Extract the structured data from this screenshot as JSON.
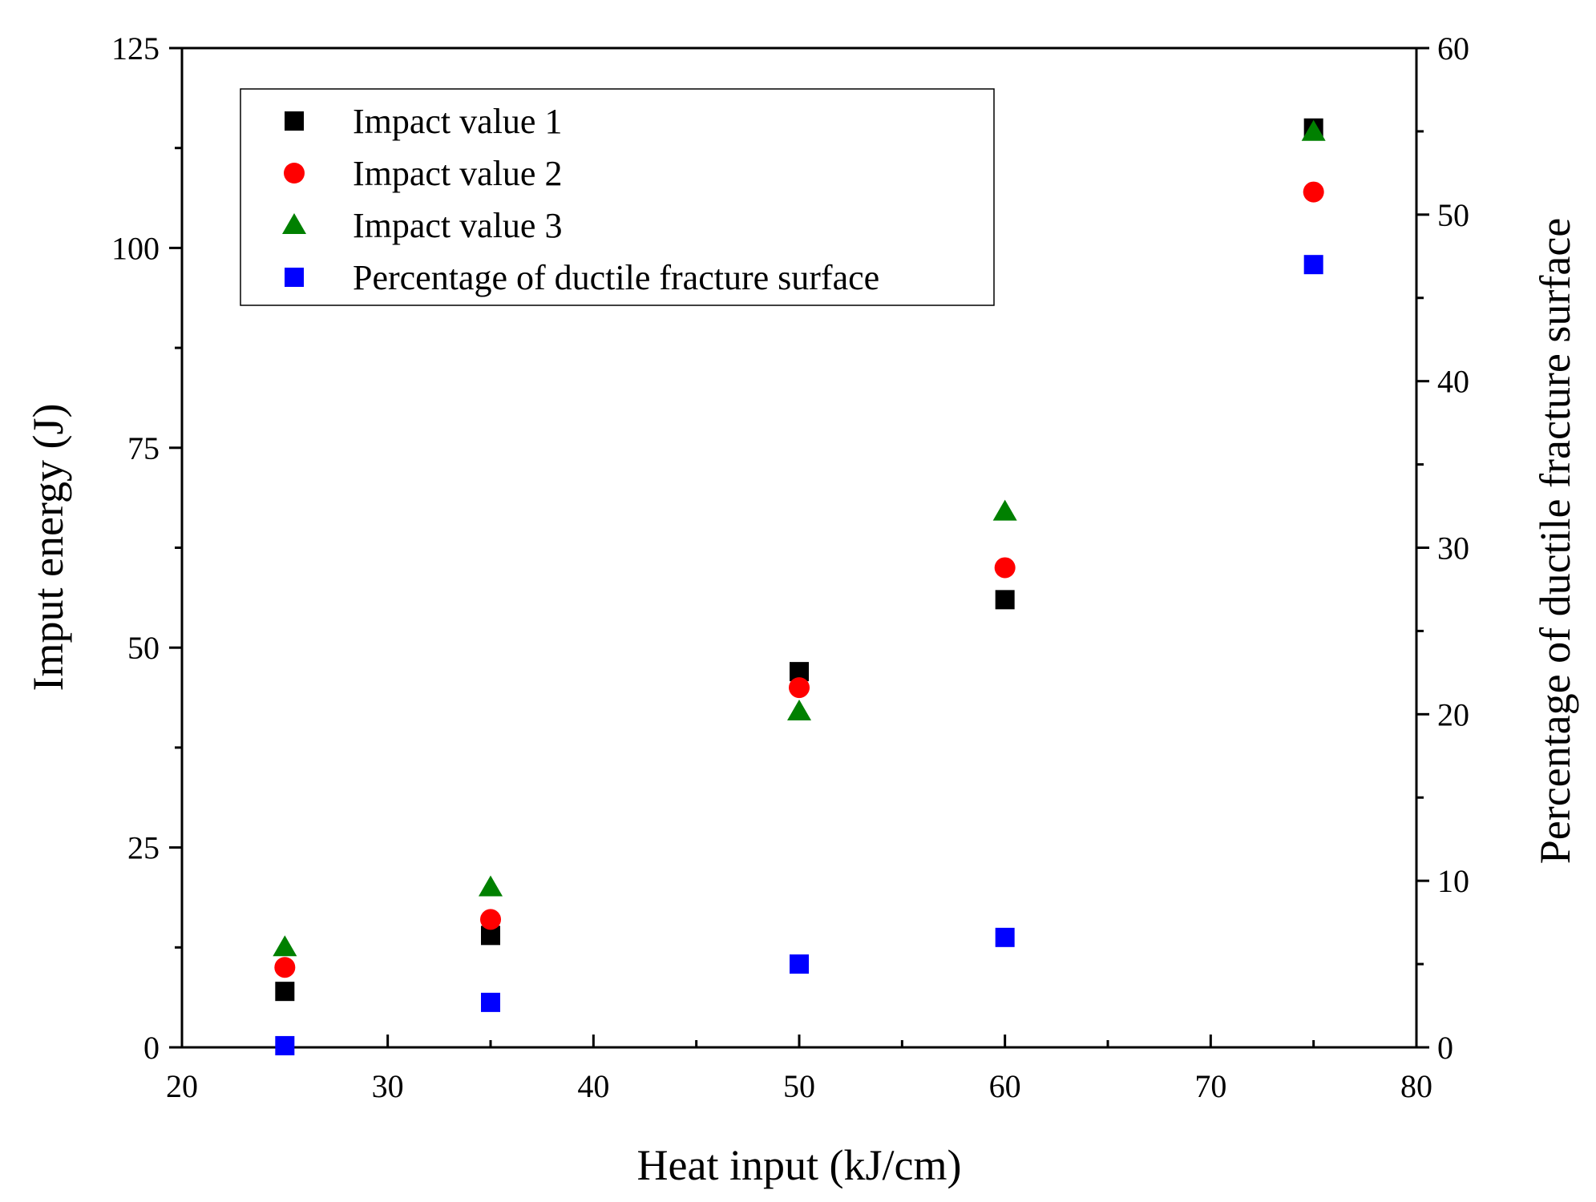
{
  "chart_data": {
    "type": "scatter",
    "xlabel": "Heat input (kJ/cm)",
    "ylabel": "Imput energy (J)",
    "y2label": "Percentage of ductile fracture surface",
    "xlim": [
      20,
      80
    ],
    "ylim": [
      0,
      125
    ],
    "y2lim": [
      0,
      60
    ],
    "grid": false,
    "legend_position": "top-left",
    "x_ticks": [
      "20",
      "30",
      "40",
      "50",
      "60",
      "70",
      "80"
    ],
    "y_ticks": [
      "0",
      "25",
      "50",
      "75",
      "100",
      "125"
    ],
    "y2_ticks": [
      "0",
      "10",
      "20",
      "30",
      "40",
      "50",
      "60"
    ],
    "series": [
      {
        "name": "Impact value 1",
        "axis": "left",
        "marker": "square",
        "color": "#000000",
        "x": [
          25,
          35,
          50,
          60,
          75
        ],
        "values": [
          7,
          14,
          47,
          56,
          115
        ]
      },
      {
        "name": "Impact value 2",
        "axis": "left",
        "marker": "circle",
        "color": "#ff0000",
        "x": [
          25,
          35,
          50,
          60,
          75
        ],
        "values": [
          10,
          16,
          45,
          60,
          107
        ]
      },
      {
        "name": "Impact value 3",
        "axis": "left",
        "marker": "triangle",
        "color": "#008000",
        "x": [
          25,
          35,
          50,
          60,
          75
        ],
        "values": [
          12.5,
          20,
          42,
          67,
          114.5
        ]
      },
      {
        "name": "Percentage of ductile fracture surface",
        "axis": "right",
        "marker": "square",
        "color": "#0000ff",
        "x": [
          25,
          35,
          50,
          60,
          75
        ],
        "values": [
          0.1,
          2.7,
          5.0,
          6.6,
          47
        ]
      }
    ]
  }
}
